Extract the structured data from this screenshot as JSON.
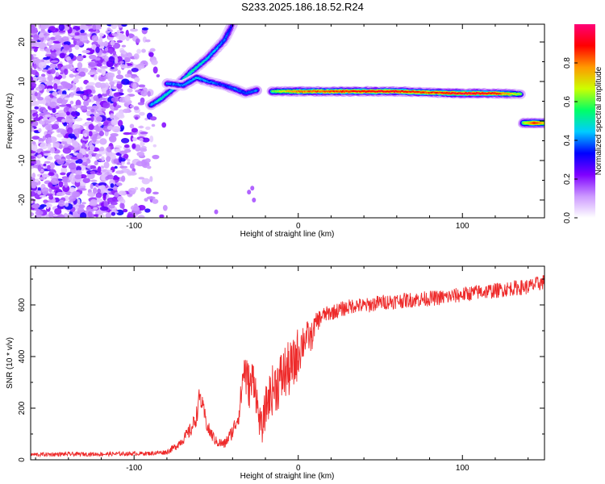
{
  "title": "S233.2025.186.18.52.R24",
  "colors": {
    "trace": "#ee2a2a",
    "axis": "#000000",
    "colormap": [
      "#ffffff",
      "#cc99ff",
      "#7f00ff",
      "#0000ff",
      "#00ccff",
      "#00ff66",
      "#ccff00",
      "#ff9900",
      "#ff0000",
      "#ff0077"
    ]
  },
  "chart_data": [
    {
      "type": "heatmap",
      "xlabel": "Height of straight line (km)",
      "ylabel": "Frequency (Hz)",
      "xlim": [
        -163,
        150
      ],
      "ylim": [
        -24.5,
        24.5
      ],
      "xticks": [
        -100,
        0,
        100
      ],
      "yticks": [
        -20,
        -10,
        0,
        10,
        20
      ],
      "colorbar": {
        "label": "Normalized spectral amplitude",
        "range": [
          0,
          1
        ],
        "ticks": [
          "0.0",
          "0.2",
          "0.4",
          "0.6",
          "0.8"
        ],
        "tick_values": [
          0.0,
          0.2,
          0.4,
          0.6,
          0.8
        ]
      },
      "ridges": [
        {
          "name": "flat",
          "points": [
            [
              -16,
              7.5
            ],
            [
              0,
              7.5
            ],
            [
              20,
              7.5
            ],
            [
              40,
              7.5
            ],
            [
              60,
              7.5
            ],
            [
              80,
              7.2
            ],
            [
              100,
              7.0
            ],
            [
              120,
              7.0
            ],
            [
              136,
              6.8
            ]
          ],
          "amplitude": [
            0.6,
            0.8,
            0.85,
            0.9,
            0.9,
            0.85,
            0.95,
            0.9,
            0.6
          ]
        },
        {
          "name": "rising",
          "points": [
            [
              -90,
              4.0
            ],
            [
              -84,
              5.5
            ],
            [
              -75,
              8.5
            ],
            [
              -65,
              12.5
            ],
            [
              -55,
              16.0
            ],
            [
              -45,
              20.5
            ],
            [
              -40,
              24.5
            ]
          ],
          "amplitude": [
            0.4,
            0.5,
            0.45,
            0.5,
            0.45,
            0.4,
            0.3
          ]
        },
        {
          "name": "lower",
          "points": [
            [
              -80,
              9.5
            ],
            [
              -70,
              9.0
            ],
            [
              -62,
              11.0
            ],
            [
              -55,
              10.0
            ],
            [
              -45,
              9.0
            ],
            [
              -38,
              8.0
            ],
            [
              -32,
              7.0
            ],
            [
              -25,
              7.8
            ]
          ],
          "amplitude": [
            0.4,
            0.4,
            0.45,
            0.4,
            0.35,
            0.4,
            0.35,
            0.4
          ]
        },
        {
          "name": "offset",
          "points": [
            [
              137,
              -0.5
            ],
            [
              144,
              -0.5
            ],
            [
              150,
              -0.5
            ]
          ],
          "amplitude": [
            0.6,
            0.85,
            0.7
          ]
        }
      ]
    },
    {
      "type": "line",
      "xlabel": "Height of straight line (km)",
      "ylabel": "SNR (10 * v/v)",
      "xlim": [
        -163,
        150
      ],
      "ylim": [
        0,
        750
      ],
      "xticks": [
        -100,
        0,
        100
      ],
      "yticks": [
        0,
        200,
        400,
        600
      ],
      "series": [
        {
          "x": [
            -163,
            -140,
            -120,
            -100,
            -90,
            -80,
            -75,
            -70,
            -65,
            -62,
            -60,
            -55,
            -50,
            -45,
            -40,
            -36,
            -33,
            -31,
            -29,
            -27,
            -24,
            -22,
            -20,
            -18,
            -15,
            -12,
            -8,
            -5,
            -3,
            0,
            3,
            5,
            8,
            10,
            12,
            15,
            20,
            25,
            30,
            35,
            40,
            50,
            60,
            70,
            80,
            90,
            100,
            110,
            120,
            130,
            140,
            145,
            150
          ],
          "values": [
            20,
            22,
            22,
            24,
            25,
            30,
            50,
            80,
            120,
            170,
            250,
            120,
            70,
            60,
            110,
            180,
            360,
            300,
            280,
            330,
            160,
            120,
            200,
            240,
            280,
            300,
            340,
            350,
            360,
            420,
            460,
            480,
            470,
            520,
            540,
            560,
            570,
            580,
            590,
            600,
            595,
            610,
            615,
            620,
            625,
            630,
            640,
            650,
            655,
            665,
            670,
            680,
            690
          ],
          "noise": [
            8,
            8,
            8,
            8,
            8,
            10,
            15,
            20,
            30,
            40,
            40,
            30,
            20,
            20,
            30,
            40,
            90,
            90,
            90,
            90,
            60,
            60,
            80,
            90,
            100,
            110,
            110,
            110,
            110,
            100,
            80,
            60,
            60,
            40,
            40,
            30,
            30,
            30,
            30,
            30,
            30,
            30,
            30,
            30,
            30,
            30,
            30,
            30,
            30,
            30,
            30,
            30,
            30
          ]
        }
      ]
    }
  ]
}
